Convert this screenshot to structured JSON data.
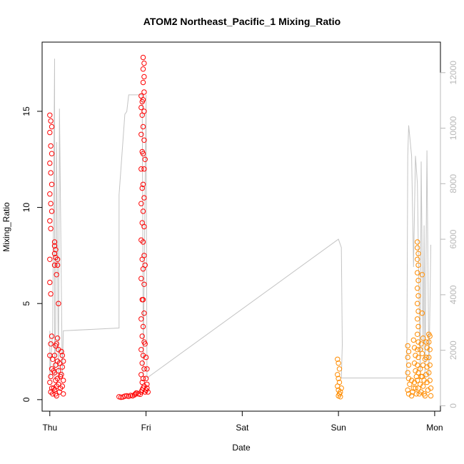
{
  "chart_data": {
    "type": "scatter",
    "title": "ATOM2 Northeast_Pacific_1 Mixing_Ratio",
    "xlabel": "Date",
    "ylabel": "Mixing_Ratio",
    "x_ticks": [
      "Thu",
      "Fri",
      "Sat",
      "Sun",
      "Mon"
    ],
    "x_tick_days": [
      0,
      1,
      2,
      3,
      4
    ],
    "xlim": [
      -0.08,
      4.06
    ],
    "ylim": [
      -0.6,
      18.6
    ],
    "y_ticks": [
      0,
      5,
      10,
      15
    ],
    "y2lim": [
      -195,
      13100
    ],
    "y2_ticks": [
      0,
      2000,
      4000,
      6000,
      8000,
      10000,
      12000
    ],
    "grid": false,
    "colors": {
      "series_a": "#ff0000",
      "series_b": "#ff8c00",
      "secondary_line": "#c4c4c4",
      "secondary_axis": "#b8b8b8"
    },
    "series": [
      {
        "color": "#ff0000",
        "points": [
          [
            0.0,
            14.8
          ],
          [
            0.01,
            14.5
          ],
          [
            0.02,
            14.2
          ],
          [
            0.0,
            13.9
          ],
          [
            0.01,
            13.2
          ],
          [
            0.02,
            12.8
          ],
          [
            0.0,
            12.3
          ],
          [
            0.01,
            11.8
          ],
          [
            0.02,
            11.2
          ],
          [
            0.0,
            10.7
          ],
          [
            0.01,
            10.2
          ],
          [
            0.02,
            9.8
          ],
          [
            0.0,
            9.3
          ],
          [
            0.01,
            8.9
          ],
          [
            0.0,
            7.3
          ],
          [
            0.0,
            6.1
          ],
          [
            0.01,
            5.5
          ],
          [
            0.02,
            3.3
          ],
          [
            0.01,
            2.9
          ],
          [
            0.0,
            2.3
          ],
          [
            0.02,
            1.6
          ],
          [
            0.01,
            1.2
          ],
          [
            0.0,
            0.9
          ],
          [
            0.02,
            0.6
          ],
          [
            0.01,
            0.4
          ],
          [
            0.03,
            0.3
          ],
          [
            0.04,
            0.6
          ],
          [
            0.05,
            8.2
          ],
          [
            0.05,
            8.0
          ],
          [
            0.06,
            7.8
          ],
          [
            0.05,
            7.6
          ],
          [
            0.06,
            7.4
          ],
          [
            0.05,
            7.0
          ],
          [
            0.07,
            6.5
          ],
          [
            0.06,
            2.8
          ],
          [
            0.05,
            2.3
          ],
          [
            0.06,
            1.8
          ],
          [
            0.05,
            1.4
          ],
          [
            0.06,
            1.0
          ],
          [
            0.07,
            0.7
          ],
          [
            0.05,
            0.5
          ],
          [
            0.06,
            0.3
          ],
          [
            0.08,
            7.3
          ],
          [
            0.08,
            7.0
          ],
          [
            0.09,
            5.0
          ],
          [
            0.08,
            3.2
          ],
          [
            0.09,
            2.6
          ],
          [
            0.08,
            2.0
          ],
          [
            0.09,
            1.5
          ],
          [
            0.08,
            1.1
          ],
          [
            0.09,
            0.8
          ],
          [
            0.1,
            0.4
          ],
          [
            0.11,
            0.6
          ],
          [
            0.12,
            2.5
          ],
          [
            0.13,
            2.3
          ],
          [
            0.14,
            2.0
          ],
          [
            0.13,
            1.7
          ],
          [
            0.12,
            1.3
          ],
          [
            0.14,
            1.0
          ],
          [
            0.13,
            0.7
          ],
          [
            0.14,
            0.3
          ],
          [
            0.1,
            1.9
          ],
          [
            0.07,
            2.9
          ],
          [
            0.04,
            1.5
          ],
          [
            0.03,
            2.1
          ],
          [
            0.11,
            1.2
          ],
          [
            0.07,
            0.2
          ],
          [
            0.72,
            0.15
          ],
          [
            0.74,
            0.12
          ],
          [
            0.76,
            0.14
          ],
          [
            0.78,
            0.18
          ],
          [
            0.8,
            0.2
          ],
          [
            0.82,
            0.17
          ],
          [
            0.84,
            0.22
          ],
          [
            0.86,
            0.2
          ],
          [
            0.88,
            0.25
          ],
          [
            0.89,
            0.3
          ],
          [
            0.9,
            0.35
          ],
          [
            0.92,
            0.3
          ],
          [
            0.94,
            0.28
          ],
          [
            0.95,
            0.4
          ],
          [
            0.96,
            0.5
          ],
          [
            0.97,
            0.6
          ],
          [
            0.95,
            15.8
          ],
          [
            0.96,
            15.5
          ],
          [
            0.95,
            15.2
          ],
          [
            0.96,
            14.8
          ],
          [
            0.95,
            13.8
          ],
          [
            0.96,
            12.9
          ],
          [
            0.95,
            12.0
          ],
          [
            0.96,
            11.0
          ],
          [
            0.95,
            10.2
          ],
          [
            0.96,
            9.2
          ],
          [
            0.95,
            8.3
          ],
          [
            0.96,
            7.3
          ],
          [
            0.95,
            6.3
          ],
          [
            0.96,
            5.2
          ],
          [
            0.95,
            4.2
          ],
          [
            0.96,
            3.3
          ],
          [
            0.95,
            2.6
          ],
          [
            0.96,
            1.9
          ],
          [
            0.95,
            1.3
          ],
          [
            0.96,
            0.9
          ],
          [
            0.97,
            17.8
          ],
          [
            0.98,
            17.5
          ],
          [
            0.97,
            17.2
          ],
          [
            0.98,
            16.8
          ],
          [
            0.97,
            16.5
          ],
          [
            0.98,
            16.0
          ],
          [
            0.97,
            15.6
          ],
          [
            0.98,
            15.0
          ],
          [
            0.97,
            14.2
          ],
          [
            0.98,
            13.5
          ],
          [
            0.97,
            12.8
          ],
          [
            0.98,
            12.0
          ],
          [
            0.97,
            11.2
          ],
          [
            0.98,
            10.5
          ],
          [
            0.97,
            9.8
          ],
          [
            0.98,
            9.0
          ],
          [
            0.97,
            8.2
          ],
          [
            0.98,
            7.5
          ],
          [
            0.97,
            6.8
          ],
          [
            0.98,
            6.0
          ],
          [
            0.97,
            5.2
          ],
          [
            0.98,
            4.5
          ],
          [
            0.97,
            3.8
          ],
          [
            0.98,
            3.0
          ],
          [
            0.97,
            2.3
          ],
          [
            0.98,
            1.6
          ],
          [
            0.97,
            1.1
          ],
          [
            0.98,
            0.7
          ],
          [
            0.99,
            0.4
          ],
          [
            1.0,
            0.5
          ],
          [
            1.01,
            0.6
          ],
          [
            1.0,
            2.2
          ],
          [
            1.01,
            1.6
          ],
          [
            1.0,
            1.1
          ],
          [
            1.01,
            0.8
          ],
          [
            1.02,
            0.4
          ],
          [
            0.99,
            2.9
          ],
          [
            0.99,
            12.5
          ],
          [
            0.99,
            7.0
          ]
        ]
      },
      {
        "color": "#ff8c00",
        "points": [
          [
            2.99,
            2.1
          ],
          [
            3.0,
            1.9
          ],
          [
            3.01,
            1.6
          ],
          [
            2.99,
            1.3
          ],
          [
            3.0,
            1.1
          ],
          [
            3.01,
            0.9
          ],
          [
            2.99,
            0.7
          ],
          [
            3.0,
            0.5
          ],
          [
            3.01,
            0.3
          ],
          [
            3.0,
            0.2
          ],
          [
            3.02,
            0.4
          ],
          [
            3.03,
            0.6
          ],
          [
            3.02,
            0.15
          ],
          [
            3.72,
            2.8
          ],
          [
            3.73,
            2.5
          ],
          [
            3.72,
            2.2
          ],
          [
            3.73,
            1.8
          ],
          [
            3.72,
            1.4
          ],
          [
            3.73,
            1.1
          ],
          [
            3.74,
            0.8
          ],
          [
            3.72,
            0.5
          ],
          [
            3.73,
            0.3
          ],
          [
            3.76,
            1.0
          ],
          [
            3.78,
            3.1
          ],
          [
            3.79,
            2.7
          ],
          [
            3.8,
            2.3
          ],
          [
            3.79,
            1.9
          ],
          [
            3.8,
            1.5
          ],
          [
            3.81,
            1.2
          ],
          [
            3.79,
            0.9
          ],
          [
            3.8,
            0.6
          ],
          [
            3.81,
            0.3
          ],
          [
            3.82,
            8.2
          ],
          [
            3.82,
            7.9
          ],
          [
            3.83,
            7.6
          ],
          [
            3.82,
            7.3
          ],
          [
            3.83,
            7.0
          ],
          [
            3.82,
            6.6
          ],
          [
            3.83,
            6.2
          ],
          [
            3.82,
            5.8
          ],
          [
            3.83,
            5.4
          ],
          [
            3.82,
            5.0
          ],
          [
            3.83,
            4.6
          ],
          [
            3.82,
            4.2
          ],
          [
            3.83,
            3.8
          ],
          [
            3.82,
            3.4
          ],
          [
            3.83,
            3.0
          ],
          [
            3.82,
            2.6
          ],
          [
            3.83,
            2.2
          ],
          [
            3.82,
            1.8
          ],
          [
            3.83,
            1.4
          ],
          [
            3.82,
            1.0
          ],
          [
            3.83,
            0.6
          ],
          [
            3.84,
            0.3
          ],
          [
            3.85,
            2.6
          ],
          [
            3.86,
            2.9
          ],
          [
            3.85,
            1.6
          ],
          [
            3.86,
            1.2
          ],
          [
            3.85,
            0.8
          ],
          [
            3.86,
            0.4
          ],
          [
            3.87,
            6.5
          ],
          [
            3.87,
            4.5
          ],
          [
            3.88,
            3.2
          ],
          [
            3.87,
            2.4
          ],
          [
            3.88,
            1.8
          ],
          [
            3.87,
            1.2
          ],
          [
            3.88,
            0.7
          ],
          [
            3.89,
            0.3
          ],
          [
            3.9,
            2.1
          ],
          [
            3.91,
            3.0
          ],
          [
            3.92,
            2.7
          ],
          [
            3.91,
            2.2
          ],
          [
            3.92,
            1.7
          ],
          [
            3.91,
            1.3
          ],
          [
            3.92,
            0.9
          ],
          [
            3.93,
            0.5
          ],
          [
            3.94,
            3.4
          ],
          [
            3.95,
            3.3
          ],
          [
            3.94,
            3.0
          ],
          [
            3.95,
            2.6
          ],
          [
            3.94,
            2.2
          ],
          [
            3.95,
            1.8
          ],
          [
            3.94,
            1.4
          ],
          [
            3.95,
            1.0
          ],
          [
            3.96,
            0.6
          ],
          [
            3.96,
            0.2
          ],
          [
            3.76,
            0.2
          ],
          [
            3.77,
            0.4
          ],
          [
            3.78,
            0.6
          ],
          [
            3.89,
            1.0
          ],
          [
            3.9,
            0.2
          ]
        ]
      }
    ],
    "secondary_line": {
      "axis": "right",
      "points": [
        [
          0.0,
          2700
        ],
        [
          0.0,
          1000
        ],
        [
          0.03,
          2700
        ],
        [
          0.05,
          12500
        ],
        [
          0.05,
          1000
        ],
        [
          0.06,
          2700
        ],
        [
          0.07,
          9500
        ],
        [
          0.09,
          1000
        ],
        [
          0.1,
          10700
        ],
        [
          0.13,
          1000
        ],
        [
          0.14,
          2700
        ],
        [
          0.72,
          2800
        ],
        [
          0.72,
          7600
        ],
        [
          0.78,
          10500
        ],
        [
          0.8,
          10600
        ],
        [
          0.82,
          11200
        ],
        [
          0.96,
          11200
        ],
        [
          0.97,
          2800
        ],
        [
          0.97,
          1000
        ],
        [
          1.0,
          11200
        ],
        [
          1.01,
          1000
        ],
        [
          3.0,
          6000
        ],
        [
          3.03,
          5700
        ],
        [
          3.04,
          2200
        ],
        [
          3.03,
          1000
        ],
        [
          3.71,
          1000
        ],
        [
          3.72,
          9000
        ],
        [
          3.73,
          10100
        ],
        [
          3.76,
          9000
        ],
        [
          3.78,
          5000
        ],
        [
          3.8,
          9000
        ],
        [
          3.82,
          8000
        ],
        [
          3.85,
          1000
        ],
        [
          3.86,
          8800
        ],
        [
          3.88,
          2000
        ],
        [
          3.89,
          6500
        ],
        [
          3.9,
          1000
        ],
        [
          3.92,
          9200
        ],
        [
          3.93,
          5000
        ],
        [
          3.94,
          1000
        ],
        [
          3.96,
          5800
        ]
      ]
    }
  }
}
